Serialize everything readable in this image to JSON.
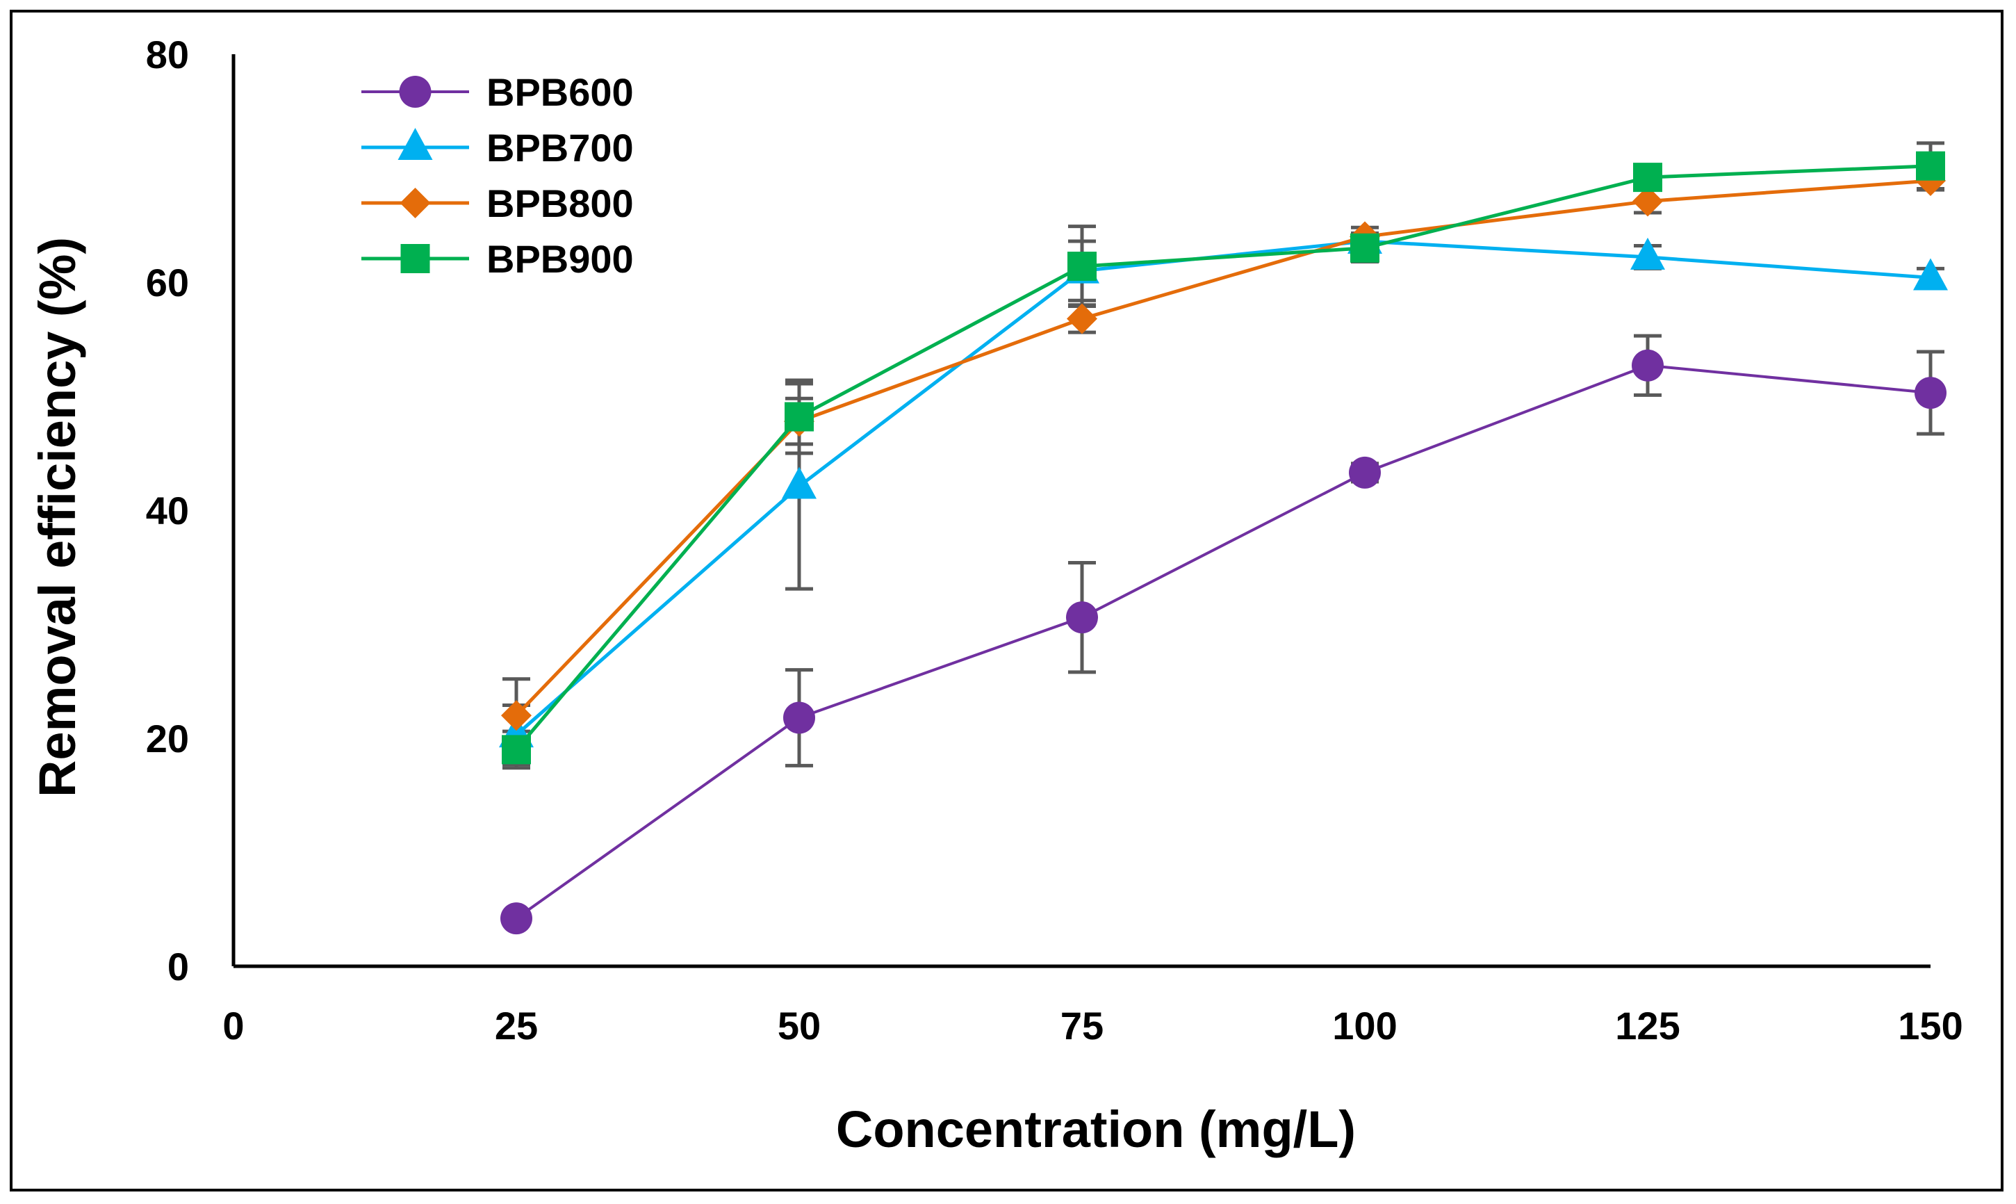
{
  "chart_data": {
    "type": "line",
    "title": "",
    "xlabel": "Concentration (mg/L)",
    "ylabel": "Removal efficiency (%)",
    "xlim": [
      0,
      150
    ],
    "ylim": [
      0,
      80
    ],
    "xticks": [
      0,
      25,
      50,
      75,
      100,
      125,
      150
    ],
    "yticks": [
      0,
      20,
      40,
      60,
      80
    ],
    "grid": false,
    "legend_position": "top-left",
    "x": [
      25,
      50,
      75,
      100,
      125,
      150
    ],
    "series": [
      {
        "name": "BPB600",
        "color": "#7030A0",
        "marker": "circle",
        "values": [
          4.2,
          21.8,
          30.6,
          43.3,
          52.7,
          50.3
        ],
        "error": [
          0.4,
          4.2,
          4.8,
          0.8,
          2.6,
          3.6
        ]
      },
      {
        "name": "BPB700",
        "color": "#00B0F0",
        "marker": "triangle",
        "values": [
          20.3,
          42.1,
          61.0,
          63.6,
          62.2,
          60.4
        ],
        "error": [
          2.6,
          9.0,
          2.6,
          0.7,
          1.0,
          0.8
        ]
      },
      {
        "name": "BPB800",
        "color": "#E46C0A",
        "marker": "diamond",
        "values": [
          22.0,
          47.8,
          56.8,
          64.0,
          67.1,
          68.9
        ],
        "error": [
          3.2,
          2.0,
          1.2,
          0.8,
          1.0,
          0.8
        ]
      },
      {
        "name": "BPB900",
        "color": "#00B050",
        "marker": "square",
        "values": [
          19.0,
          48.2,
          61.4,
          63.0,
          69.2,
          70.2
        ],
        "error": [
          1.6,
          3.2,
          3.5,
          1.2,
          1.0,
          2.0
        ]
      }
    ]
  }
}
